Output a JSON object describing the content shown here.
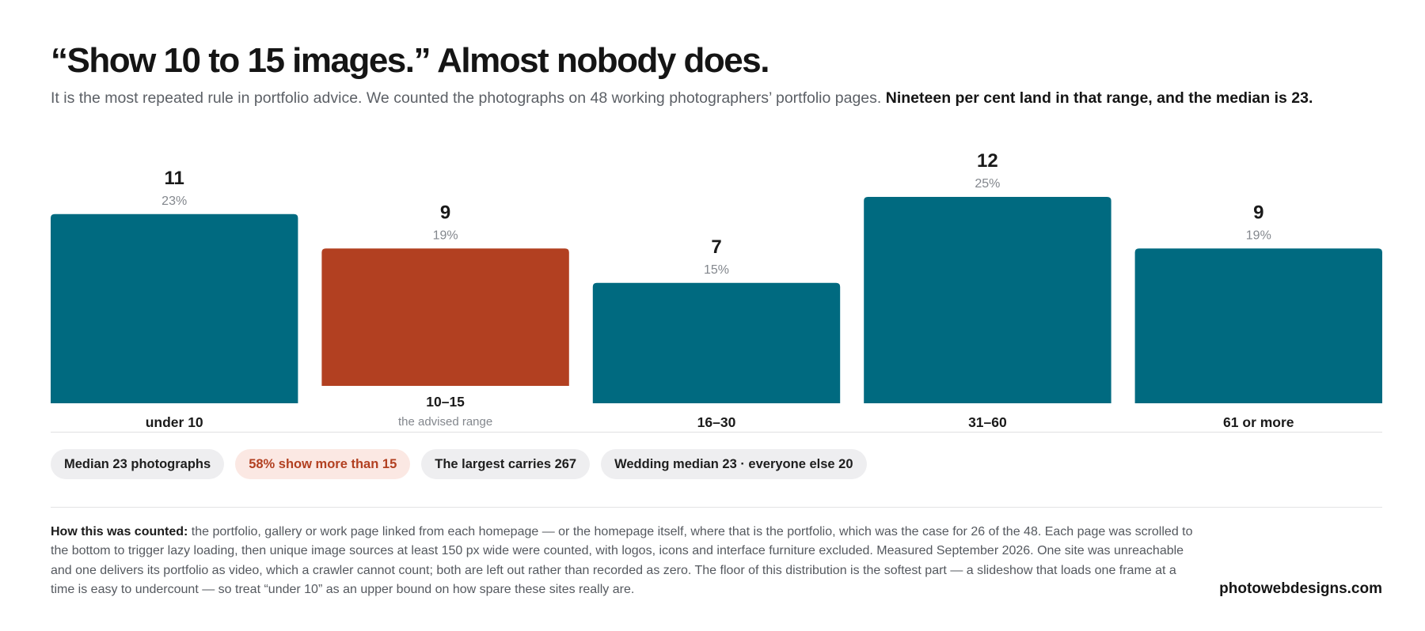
{
  "header": {
    "title": "“Show 10 to 15 images.” Almost nobody does.",
    "subtitle_lead": "It is the most repeated rule in portfolio advice. We counted the photographs on 48 working photographers’ portfolio pages.",
    "subtitle_bold": "Nineteen per cent land in that range, and the median is 23."
  },
  "chart_data": {
    "type": "bar",
    "categories": [
      "under 10",
      "10–15",
      "16–30",
      "31–60",
      "61 or more"
    ],
    "values": [
      11,
      9,
      7,
      12,
      9
    ],
    "percent_labels": [
      "23%",
      "19%",
      "15%",
      "25%",
      "19%"
    ],
    "category_notes": [
      "",
      "the advised range",
      "",
      "",
      ""
    ],
    "highlight_index": 1,
    "ylim": [
      0,
      12
    ],
    "grid": false,
    "colors": {
      "default": "#006a80",
      "highlight": "#b24021"
    }
  },
  "chips": [
    {
      "label": "Median 23 photographs",
      "accent": false
    },
    {
      "label": "58% show more than 15",
      "accent": true
    },
    {
      "label": "The largest carries 267",
      "accent": false
    },
    {
      "label": "Wedding median 23 · everyone else 20",
      "accent": false
    }
  ],
  "footnote": {
    "lead": "How this was counted:",
    "body": "the portfolio, gallery or work page linked from each homepage — or the homepage itself, where that is the portfolio, which was the case for 26 of the 48. Each page was scrolled to the bottom to trigger lazy loading, then unique image sources at least 150 px wide were counted, with logos, icons and interface furniture excluded. Measured September 2026. One site was unreachable and one delivers its portfolio as video, which a crawler cannot count; both are left out rather than recorded as zero. The floor of this distribution is the softest part — a slideshow that loads one frame at a time is easy to undercount — so treat “under 10” as an upper bound on how spare these sites really are."
  },
  "brand": "photowebdesigns.com"
}
